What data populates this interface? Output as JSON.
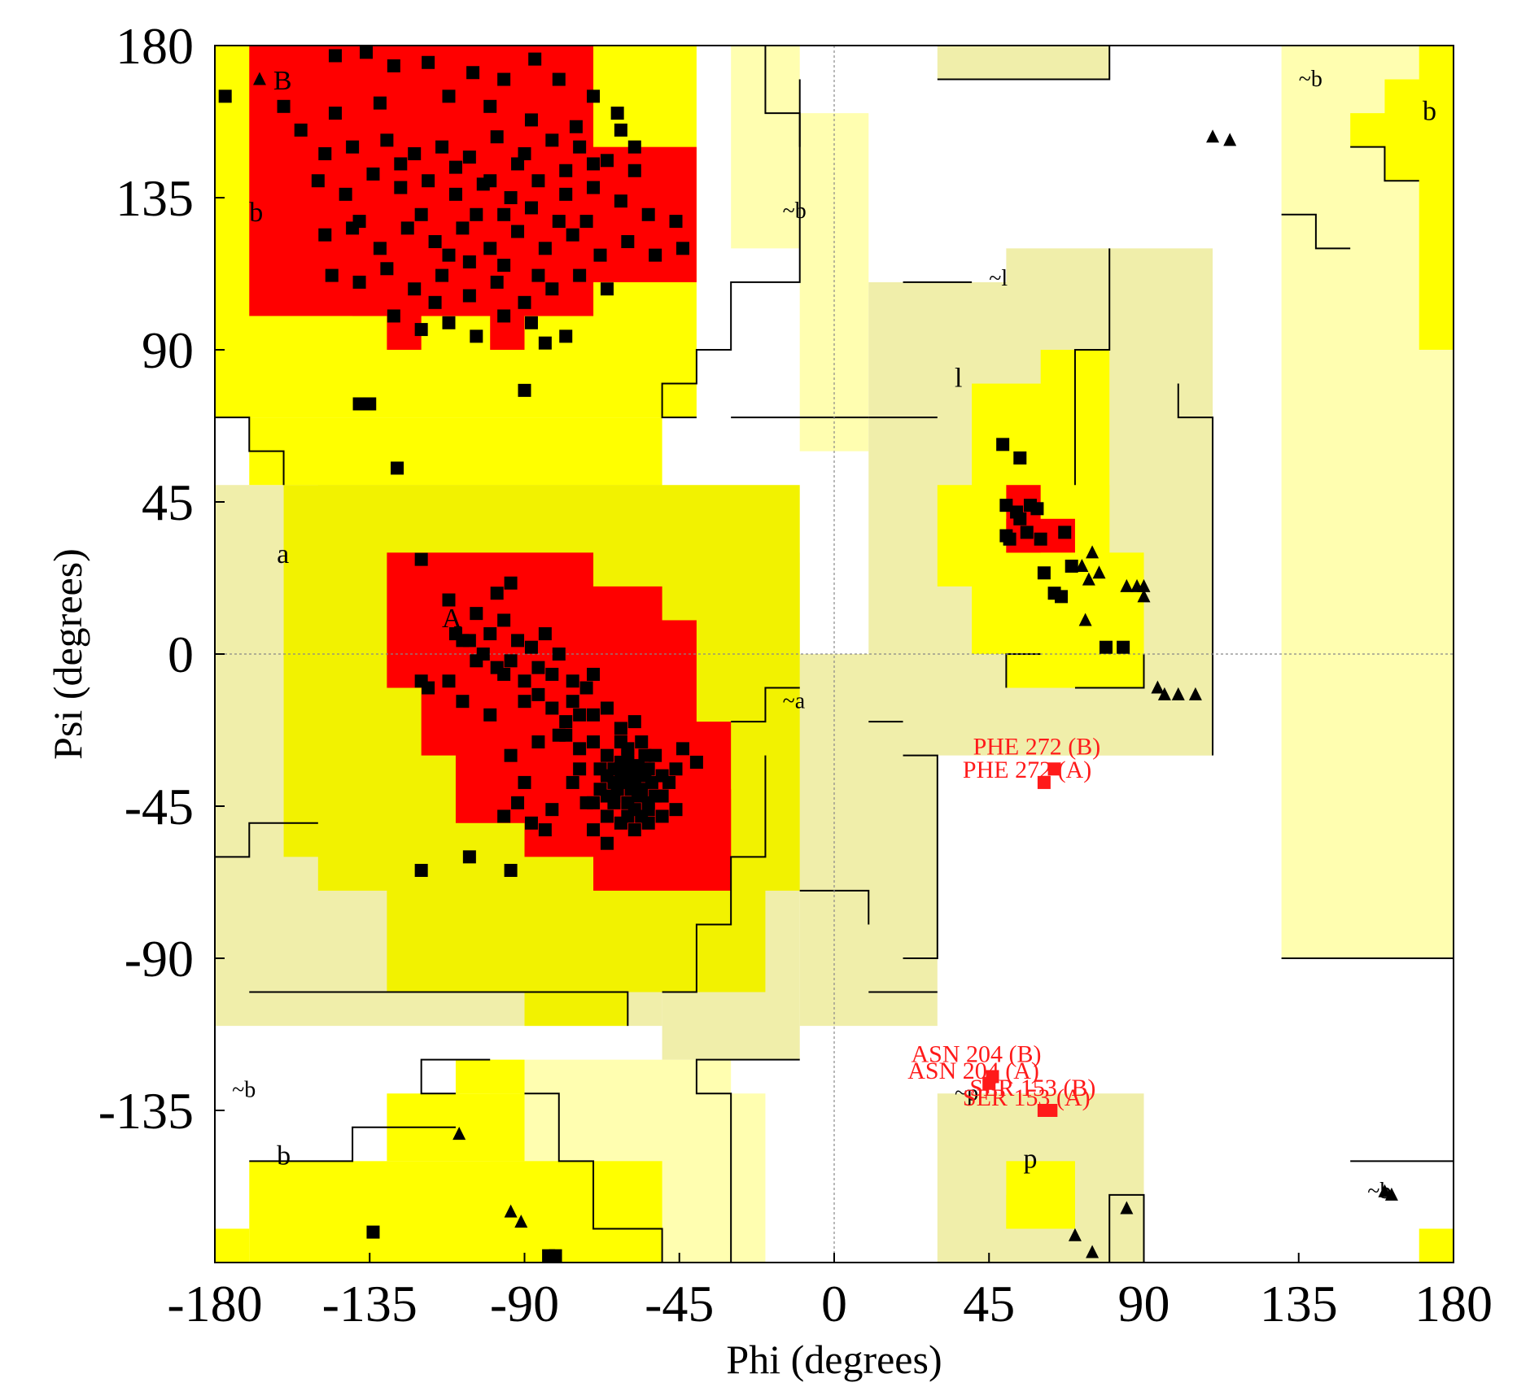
{
  "chart_data": {
    "type": "scatter",
    "title": "",
    "xlabel": "Phi (degrees)",
    "ylabel": "Psi (degrees)",
    "xlim": [
      -180,
      180
    ],
    "ylim": [
      -180,
      180
    ],
    "x_ticks": [
      -180,
      -135,
      -90,
      -45,
      0,
      45,
      90,
      135,
      180
    ],
    "y_ticks": [
      180,
      135,
      90,
      45,
      0,
      -45,
      -90,
      -135
    ],
    "zero_lines": true,
    "colors": {
      "most_favoured": "#ff0000",
      "additional_allowed": "#ffff00",
      "generously_allowed_bright": "#f2f200",
      "generously_allowed": "#fffeb0",
      "generously_allowed_muted": "#f0eeaa",
      "disallowed": "#ffffff",
      "residue_marker": "#000000",
      "outlier_marker": "#ff1a1a"
    },
    "region_labels": [
      {
        "text": "B",
        "x": -163,
        "y": 167
      },
      {
        "text": "b",
        "x": -170,
        "y": 128
      },
      {
        "text": "~b",
        "x": -15,
        "y": 129
      },
      {
        "text": "~b",
        "x": 135,
        "y": 168
      },
      {
        "text": "b",
        "x": 171,
        "y": 158
      },
      {
        "text": "~l",
        "x": 45,
        "y": 109
      },
      {
        "text": "l",
        "x": 35,
        "y": 79
      },
      {
        "text": "a",
        "x": -162,
        "y": 27
      },
      {
        "text": "A",
        "x": -114,
        "y": 8
      },
      {
        "text": "~a",
        "x": -15,
        "y": -16
      },
      {
        "text": "~b",
        "x": -175,
        "y": -131
      },
      {
        "text": "b",
        "x": -162,
        "y": -151
      },
      {
        "text": "~p",
        "x": 35,
        "y": -132
      },
      {
        "text": "p",
        "x": 55,
        "y": -152
      },
      {
        "text": "~b",
        "x": 155,
        "y": -161
      }
    ],
    "outliers": [
      {
        "label": "PHE 272 (B)",
        "x": 64,
        "y": -34
      },
      {
        "label": "PHE 272 (A)",
        "x": 61,
        "y": -38
      },
      {
        "label": "ASN 204 (B)",
        "x": 46,
        "y": -125
      },
      {
        "label": "ASN 204 (A)",
        "x": 45,
        "y": -127
      },
      {
        "label": "SER 153 (B)",
        "x": 63,
        "y": -135
      },
      {
        "label": "SER 153 (A)",
        "x": 61,
        "y": -135
      }
    ],
    "glycine_points": [
      [
        -167,
        170
      ],
      [
        110,
        153
      ],
      [
        115,
        152
      ],
      [
        75,
        30
      ],
      [
        72,
        26
      ],
      [
        74,
        22
      ],
      [
        77,
        24
      ],
      [
        88,
        20
      ],
      [
        85,
        20
      ],
      [
        90,
        20
      ],
      [
        90,
        17
      ],
      [
        73,
        10
      ],
      [
        94,
        -10
      ],
      [
        96,
        -12
      ],
      [
        100,
        -12
      ],
      [
        105,
        -12
      ],
      [
        -109,
        -142
      ],
      [
        -94,
        -165
      ],
      [
        -91,
        -168
      ],
      [
        85,
        -164
      ],
      [
        70,
        -172
      ],
      [
        75,
        -177
      ],
      [
        160,
        -159
      ],
      [
        162,
        -160
      ]
    ],
    "residue_points": [
      [
        -177,
        165
      ],
      [
        -160,
        162
      ],
      [
        -145,
        177
      ],
      [
        -136,
        178
      ],
      [
        -128,
        174
      ],
      [
        -118,
        175
      ],
      [
        -105,
        172
      ],
      [
        -96,
        170
      ],
      [
        -87,
        176
      ],
      [
        -80,
        170
      ],
      [
        -70,
        165
      ],
      [
        -63,
        160
      ],
      [
        -155,
        155
      ],
      [
        -148,
        148
      ],
      [
        -140,
        150
      ],
      [
        -130,
        152
      ],
      [
        -122,
        148
      ],
      [
        -114,
        150
      ],
      [
        -106,
        147
      ],
      [
        -98,
        153
      ],
      [
        -90,
        148
      ],
      [
        -82,
        152
      ],
      [
        -74,
        150
      ],
      [
        -66,
        146
      ],
      [
        -58,
        143
      ],
      [
        -150,
        140
      ],
      [
        -142,
        136
      ],
      [
        -134,
        142
      ],
      [
        -126,
        138
      ],
      [
        -118,
        140
      ],
      [
        -110,
        136
      ],
      [
        -102,
        139
      ],
      [
        -94,
        135
      ],
      [
        -86,
        140
      ],
      [
        -78,
        136
      ],
      [
        -70,
        138
      ],
      [
        -62,
        134
      ],
      [
        -54,
        130
      ],
      [
        -46,
        128
      ],
      [
        -148,
        124
      ],
      [
        -140,
        126
      ],
      [
        -132,
        120
      ],
      [
        -124,
        126
      ],
      [
        -116,
        122
      ],
      [
        -108,
        126
      ],
      [
        -100,
        120
      ],
      [
        -92,
        125
      ],
      [
        -84,
        120
      ],
      [
        -76,
        124
      ],
      [
        -68,
        118
      ],
      [
        -60,
        122
      ],
      [
        -52,
        118
      ],
      [
        -44,
        120
      ],
      [
        -146,
        112
      ],
      [
        -138,
        110
      ],
      [
        -130,
        114
      ],
      [
        -122,
        108
      ],
      [
        -114,
        112
      ],
      [
        -106,
        106
      ],
      [
        -98,
        110
      ],
      [
        -90,
        104
      ],
      [
        -82,
        108
      ],
      [
        -74,
        112
      ],
      [
        -66,
        108
      ],
      [
        -128,
        100
      ],
      [
        -120,
        96
      ],
      [
        -112,
        98
      ],
      [
        -104,
        94
      ],
      [
        -96,
        100
      ],
      [
        -88,
        98
      ],
      [
        -84,
        92
      ],
      [
        -78,
        94
      ],
      [
        -90,
        78
      ],
      [
        -138,
        74
      ],
      [
        -135,
        74
      ],
      [
        -127,
        55
      ],
      [
        -145,
        160
      ],
      [
        -132,
        163
      ],
      [
        -112,
        165
      ],
      [
        -100,
        162
      ],
      [
        -88,
        158
      ],
      [
        -75,
        156
      ],
      [
        -62,
        155
      ],
      [
        -120,
        130
      ],
      [
        -96,
        130
      ],
      [
        -72,
        128
      ],
      [
        -112,
        118
      ],
      [
        -86,
        112
      ],
      [
        -96,
        115
      ],
      [
        -110,
        144
      ],
      [
        -92,
        145
      ],
      [
        -70,
        145
      ],
      [
        -80,
        128
      ],
      [
        -104,
        130
      ],
      [
        -126,
        145
      ],
      [
        -138,
        128
      ],
      [
        -116,
        104
      ],
      [
        -106,
        116
      ],
      [
        -58,
        150
      ],
      [
        -78,
        143
      ],
      [
        -100,
        140
      ],
      [
        -88,
        132
      ],
      [
        -120,
        28
      ],
      [
        -112,
        16
      ],
      [
        -104,
        12
      ],
      [
        -98,
        18
      ],
      [
        -94,
        21
      ],
      [
        -110,
        6
      ],
      [
        -106,
        4
      ],
      [
        -100,
        6
      ],
      [
        -96,
        10
      ],
      [
        -92,
        4
      ],
      [
        -88,
        2
      ],
      [
        -84,
        6
      ],
      [
        -80,
        0
      ],
      [
        -104,
        -2
      ],
      [
        -98,
        -4
      ],
      [
        -90,
        -8
      ],
      [
        -86,
        -12
      ],
      [
        -82,
        -6
      ],
      [
        -76,
        -14
      ],
      [
        -72,
        -10
      ],
      [
        -70,
        -18
      ],
      [
        -66,
        -16
      ],
      [
        -62,
        -22
      ],
      [
        -58,
        -20
      ],
      [
        -78,
        -24
      ],
      [
        -74,
        -28
      ],
      [
        -70,
        -26
      ],
      [
        -66,
        -30
      ],
      [
        -64,
        -34
      ],
      [
        -62,
        -36
      ],
      [
        -60,
        -32
      ],
      [
        -58,
        -38
      ],
      [
        -56,
        -40
      ],
      [
        -54,
        -34
      ],
      [
        -52,
        -30
      ],
      [
        -50,
        -36
      ],
      [
        -68,
        -40
      ],
      [
        -64,
        -42
      ],
      [
        -60,
        -44
      ],
      [
        -58,
        -46
      ],
      [
        -56,
        -48
      ],
      [
        -54,
        -44
      ],
      [
        -50,
        -42
      ],
      [
        -48,
        -38
      ],
      [
        -46,
        -34
      ],
      [
        -44,
        -28
      ],
      [
        -40,
        -32
      ],
      [
        -76,
        -38
      ],
      [
        -72,
        -44
      ],
      [
        -66,
        -48
      ],
      [
        -62,
        -50
      ],
      [
        -58,
        -52
      ],
      [
        -54,
        -50
      ],
      [
        -50,
        -48
      ],
      [
        -46,
        -46
      ],
      [
        -62,
        -26
      ],
      [
        -60,
        -28
      ],
      [
        -56,
        -26
      ],
      [
        -118,
        -10
      ],
      [
        -120,
        -8
      ],
      [
        -94,
        -30
      ],
      [
        -90,
        -38
      ],
      [
        -88,
        -50
      ],
      [
        -82,
        -46
      ],
      [
        -70,
        -44
      ],
      [
        -70,
        -52
      ],
      [
        -84,
        -52
      ],
      [
        -92,
        -44
      ],
      [
        -96,
        -48
      ],
      [
        -106,
        -60
      ],
      [
        -120,
        -64
      ],
      [
        -94,
        -64
      ],
      [
        -66,
        -56
      ],
      [
        -74,
        -34
      ],
      [
        -80,
        -24
      ],
      [
        -86,
        -26
      ],
      [
        -100,
        -18
      ],
      [
        -108,
        -14
      ],
      [
        -112,
        -8
      ],
      [
        -60,
        -30
      ],
      [
        -57,
        -33
      ],
      [
        -55,
        -36
      ],
      [
        -59,
        -40
      ],
      [
        -61,
        -38
      ],
      [
        -63,
        -40
      ],
      [
        -57,
        -42
      ],
      [
        -53,
        -38
      ],
      [
        -55,
        -30
      ],
      [
        -59,
        -35
      ],
      [
        -61,
        -34
      ],
      [
        -62,
        -32
      ],
      [
        -64,
        -38
      ],
      [
        -66,
        -36
      ],
      [
        -54,
        -46
      ],
      [
        -52,
        -42
      ],
      [
        -56,
        -42
      ],
      [
        -58,
        -36
      ],
      [
        -60,
        -48
      ],
      [
        -64,
        -44
      ],
      [
        -66,
        -42
      ],
      [
        -68,
        -34
      ],
      [
        -74,
        -18
      ],
      [
        -78,
        -20
      ],
      [
        -82,
        -16
      ],
      [
        -86,
        -4
      ],
      [
        -90,
        -14
      ],
      [
        -94,
        -2
      ],
      [
        -96,
        -6
      ],
      [
        -102,
        0
      ],
      [
        -108,
        4
      ],
      [
        -76,
        -8
      ],
      [
        -70,
        -6
      ],
      [
        49,
        62
      ],
      [
        54,
        58
      ],
      [
        50,
        44
      ],
      [
        53,
        42
      ],
      [
        57,
        44
      ],
      [
        54,
        40
      ],
      [
        59,
        43
      ],
      [
        51,
        34
      ],
      [
        50,
        35
      ],
      [
        67,
        36
      ],
      [
        60,
        34
      ],
      [
        56,
        36
      ],
      [
        61,
        24
      ],
      [
        64,
        18
      ],
      [
        66,
        17
      ],
      [
        69,
        26
      ],
      [
        79,
        2
      ],
      [
        84,
        2
      ],
      [
        -134,
        -171
      ],
      [
        -83,
        -178
      ],
      [
        -81,
        -178
      ]
    ]
  }
}
